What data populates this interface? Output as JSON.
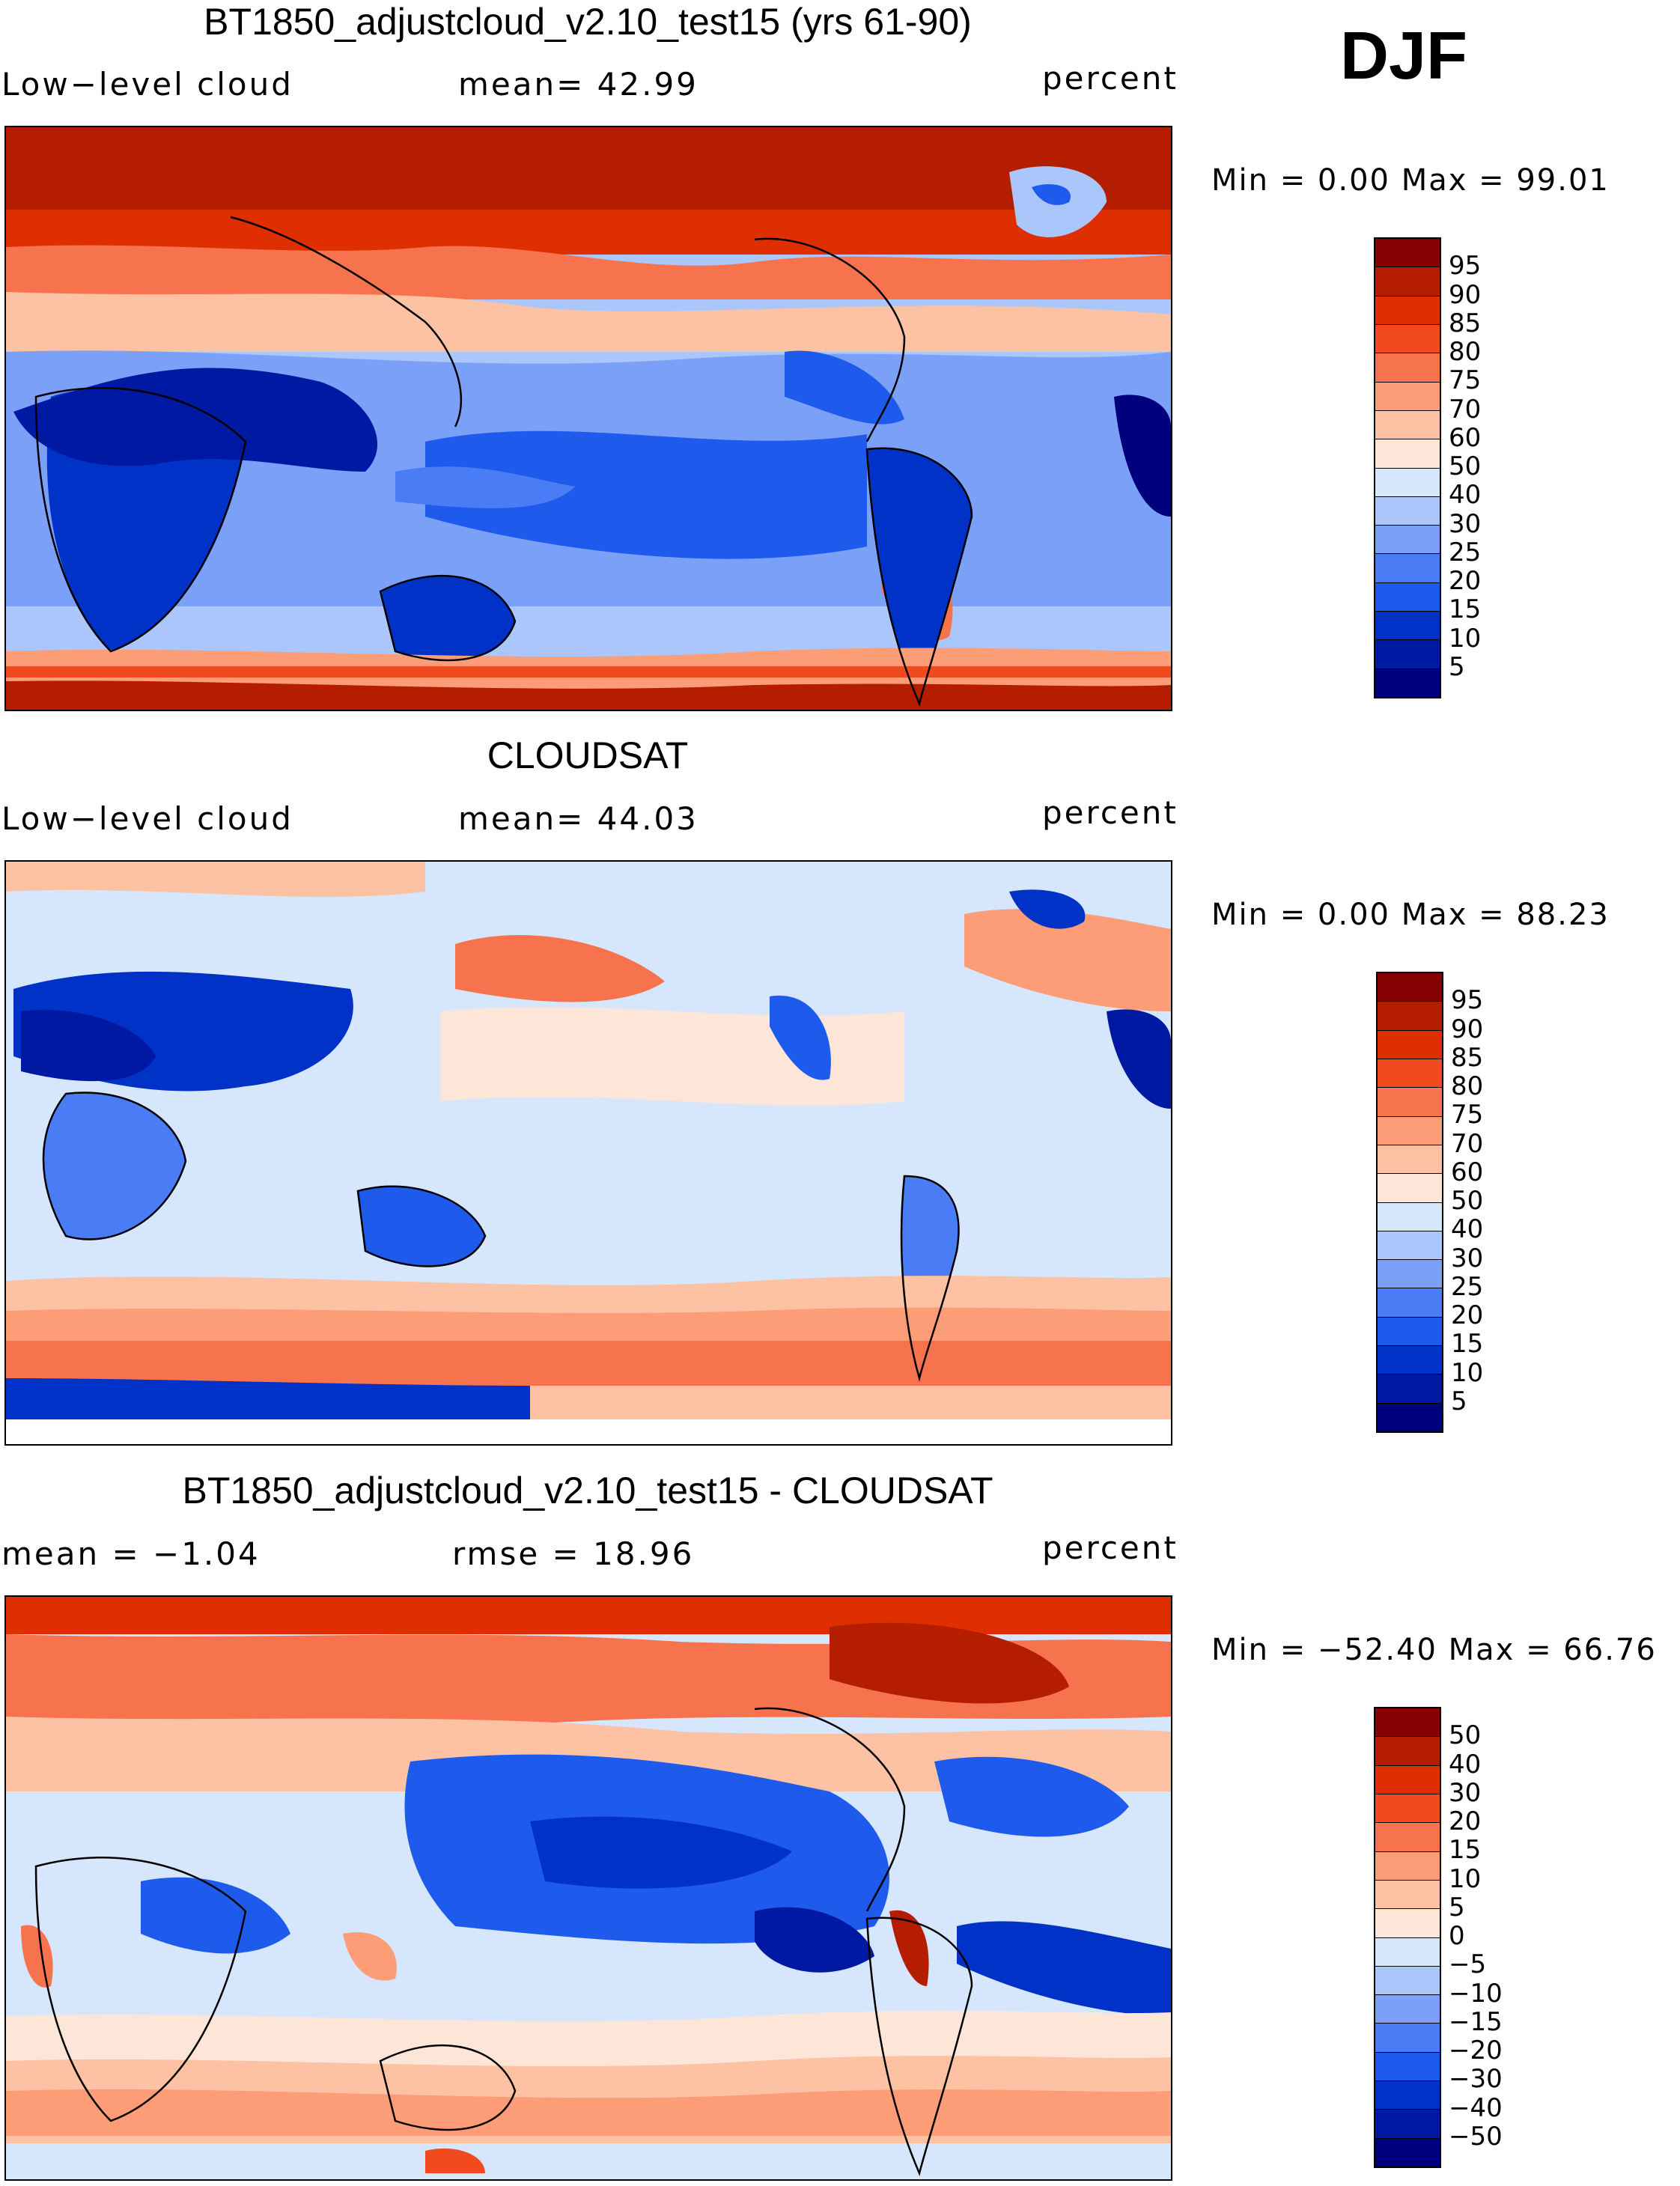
{
  "season": "DJF",
  "panels": [
    {
      "id": "model",
      "title": "BT1850_adjustcloud_v2.10_test15 (yrs 61-90)",
      "left": "Low−level cloud",
      "center": "mean=   42.99",
      "units": "percent",
      "minmax": "Min =     0.00  Max =    99.01",
      "colorbar": [
        "#00007f",
        "#0019a3",
        "#0032c8",
        "#1e5bec",
        "#4a7df5",
        "#7ba0f8",
        "#aac6fb",
        "#d6e6fd",
        "#fde6d8",
        "#fdc2a4",
        "#fc9d78",
        "#f7734e",
        "#f24a1f",
        "#df2f00",
        "#b51d00",
        "#850000"
      ],
      "labels": [
        "95",
        "90",
        "85",
        "80",
        "75",
        "70",
        "60",
        "50",
        "40",
        "30",
        "25",
        "20",
        "15",
        "10",
        "5"
      ]
    },
    {
      "id": "obs",
      "title": "CLOUDSAT",
      "left": "Low−level cloud",
      "center": "mean=   44.03",
      "units": "percent",
      "minmax": "Min =     0.00  Max =    88.23",
      "colorbar": [
        "#00007f",
        "#0019a3",
        "#0032c8",
        "#1e5bec",
        "#4a7df5",
        "#7ba0f8",
        "#aac6fb",
        "#d6e6fd",
        "#fde6d8",
        "#fdc2a4",
        "#fc9d78",
        "#f7734e",
        "#f24a1f",
        "#df2f00",
        "#b51d00",
        "#850000"
      ],
      "labels": [
        "95",
        "90",
        "85",
        "80",
        "75",
        "70",
        "60",
        "50",
        "40",
        "30",
        "25",
        "20",
        "15",
        "10",
        "5"
      ]
    },
    {
      "id": "diff",
      "title": "BT1850_adjustcloud_v2.10_test15 - CLOUDSAT",
      "left": "mean =   −1.04",
      "center": "rmse =    18.96",
      "units": "percent",
      "minmax": "Min = −52.40  Max =    66.76",
      "colorbar": [
        "#00007f",
        "#0019a3",
        "#0032c8",
        "#1e5bec",
        "#4a7df5",
        "#7ba0f8",
        "#aac6fb",
        "#d6e6fd",
        "#fde6d8",
        "#fdc2a4",
        "#fc9d78",
        "#f7734e",
        "#f24a1f",
        "#df2f00",
        "#b51d00",
        "#850000"
      ],
      "labels": [
        "50",
        "40",
        "30",
        "20",
        "15",
        "10",
        "5",
        "0",
        "−5",
        "−10",
        "−15",
        "−20",
        "−30",
        "−40",
        "−50"
      ]
    }
  ]
}
